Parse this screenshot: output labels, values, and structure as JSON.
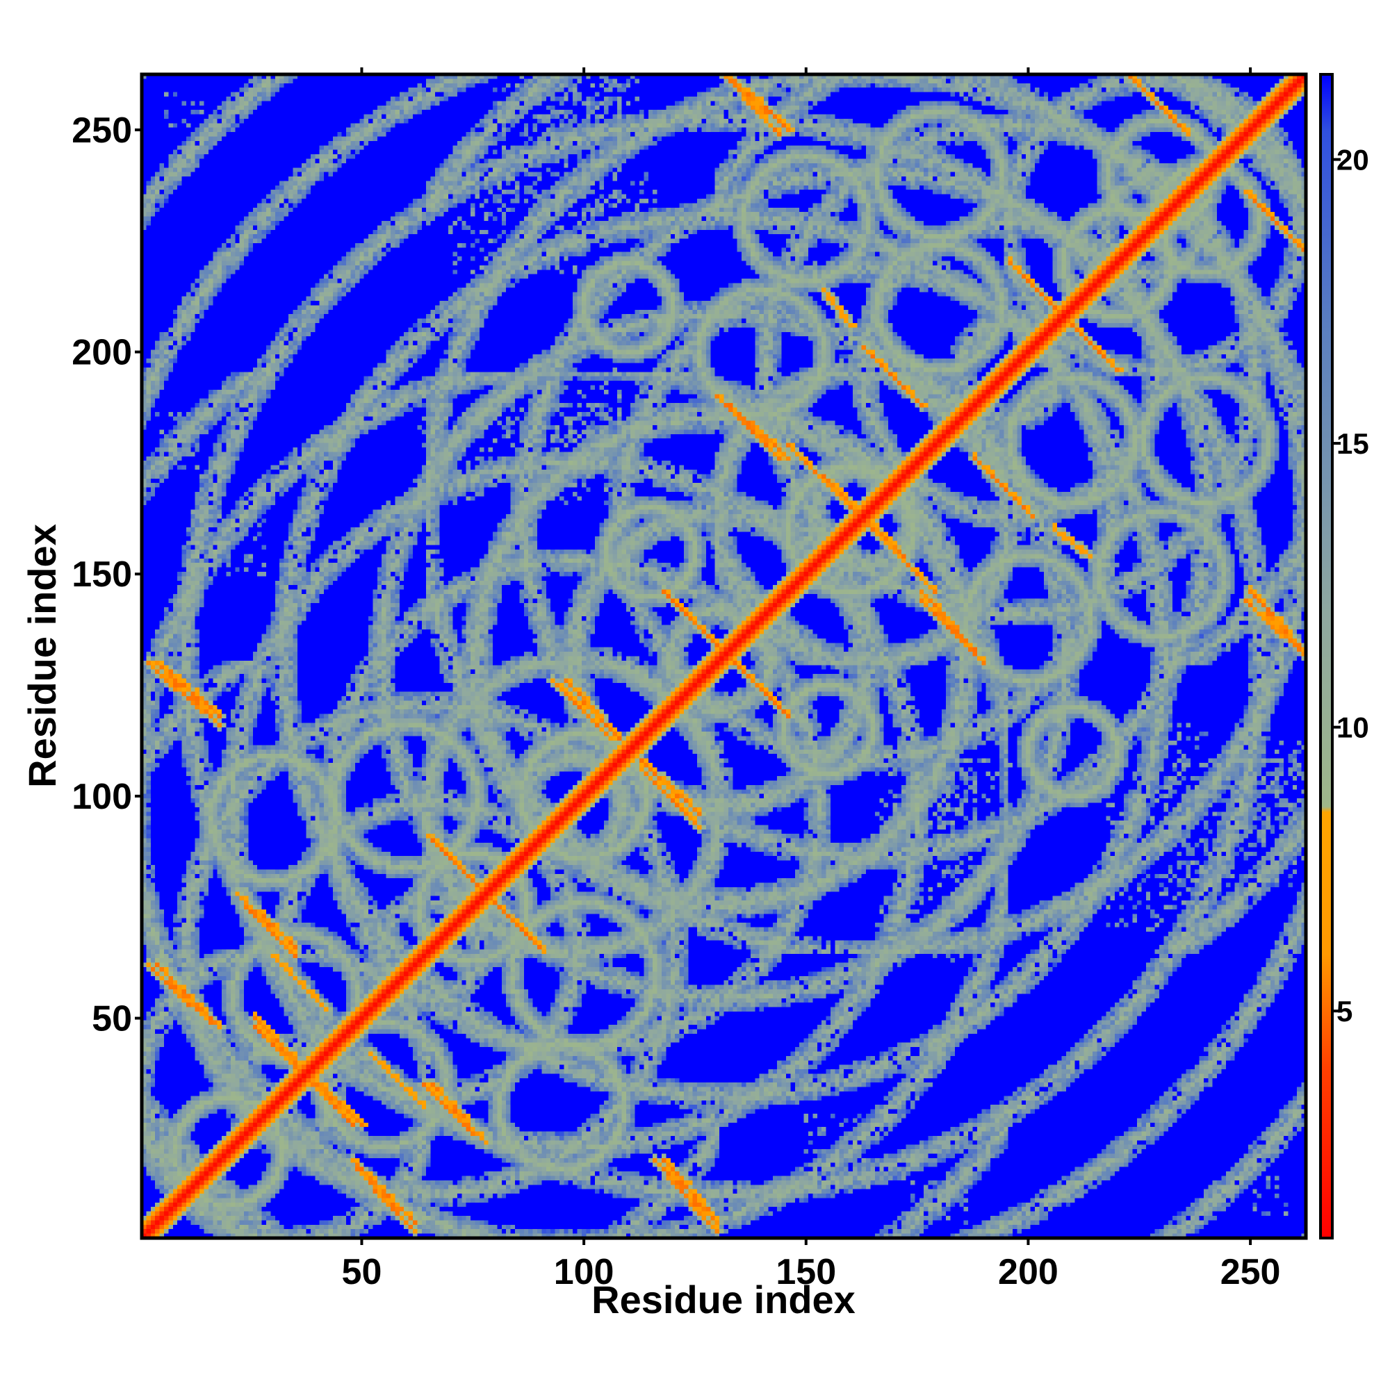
{
  "chart_data": {
    "type": "heatmap",
    "title": "",
    "xlabel": "Residue index",
    "ylabel": "Residue index",
    "xlim": [
      1,
      262
    ],
    "ylim": [
      1,
      262
    ],
    "n_residues": 262,
    "x_ticks": [
      50,
      100,
      150,
      200,
      250
    ],
    "x_tick_labels": [
      "50",
      "100",
      "150",
      "200",
      "250"
    ],
    "y_ticks": [
      50,
      100,
      150,
      200,
      250
    ],
    "y_tick_labels": [
      "50",
      "100",
      "150",
      "200",
      "250"
    ],
    "colorbar": {
      "range": [
        1,
        21.5
      ],
      "ticks": [
        5,
        10,
        15,
        20
      ],
      "tick_labels": [
        "5",
        "10",
        "15",
        "20"
      ],
      "colors": [
        {
          "value": 1,
          "color": "#ff0000"
        },
        {
          "value": 4,
          "color": "#ff4000"
        },
        {
          "value": 6,
          "color": "#ff9900"
        },
        {
          "value": 8.5,
          "color": "#ffa500"
        },
        {
          "value": 8.6,
          "color": "#9fb78a"
        },
        {
          "value": 12,
          "color": "#8fa8a0"
        },
        {
          "value": 17,
          "color": "#5b7fc0"
        },
        {
          "value": 20.5,
          "color": "#3050e0"
        },
        {
          "value": 21.5,
          "color": "#0000ff"
        }
      ]
    },
    "background_color": "#0000ff",
    "diagonal": {
      "from": 1,
      "to": 262,
      "value": 1.5
    },
    "helix_bands": [
      [
        1,
        65
      ],
      [
        65,
        130
      ],
      [
        130,
        195
      ],
      [
        195,
        262
      ],
      [
        1,
        130
      ],
      [
        130,
        262
      ],
      [
        65,
        195
      ],
      [
        1,
        195
      ],
      [
        65,
        262
      ],
      [
        1,
        262
      ]
    ],
    "contact_segments": [
      {
        "from": [
          2,
          62
        ],
        "to": [
          16,
          49
        ],
        "value": 5
      },
      {
        "from": [
          2,
          130
        ],
        "to": [
          18,
          116
        ],
        "value": 5
      },
      {
        "from": [
          24,
          75
        ],
        "to": [
          35,
          64
        ],
        "value": 5
      },
      {
        "from": [
          48,
          18
        ],
        "to": [
          62,
          4
        ],
        "value": 5
      },
      {
        "from": [
          26,
          50
        ],
        "to": [
          48,
          26
        ],
        "value": 5
      },
      {
        "from": [
          52,
          42
        ],
        "to": [
          64,
          30
        ],
        "value": 6
      },
      {
        "from": [
          65,
          91
        ],
        "to": [
          90,
          66
        ],
        "value": 5
      },
      {
        "from": [
          66,
          35
        ],
        "to": [
          78,
          22
        ],
        "value": 5
      },
      {
        "from": [
          93,
          126
        ],
        "to": [
          106,
          113
        ],
        "value": 5
      },
      {
        "from": [
          113,
          108
        ],
        "to": [
          126,
          96
        ],
        "value": 5
      },
      {
        "from": [
          118,
          18
        ],
        "to": [
          130,
          4
        ],
        "value": 5
      },
      {
        "from": [
          118,
          146
        ],
        "to": [
          146,
          118
        ],
        "value": 5
      },
      {
        "from": [
          133,
          262
        ],
        "to": [
          146,
          250
        ],
        "value": 5
      },
      {
        "from": [
          133,
          188
        ],
        "to": [
          146,
          176
        ],
        "value": 5
      },
      {
        "from": [
          154,
          214
        ],
        "to": [
          160,
          206
        ],
        "value": 6
      },
      {
        "from": [
          154,
          172
        ],
        "to": [
          179,
          146
        ],
        "value": 5
      },
      {
        "from": [
          176,
          144
        ],
        "to": [
          190,
          130
        ],
        "value": 5
      },
      {
        "from": [
          188,
          176
        ],
        "to": [
          201,
          163
        ],
        "value": 5
      },
      {
        "from": [
          196,
          220
        ],
        "to": [
          220,
          196
        ],
        "value": 5
      },
      {
        "from": [
          223,
          262
        ],
        "to": [
          236,
          249
        ],
        "value": 5
      },
      {
        "from": [
          249,
          144
        ],
        "to": [
          262,
          132
        ],
        "value": 5
      },
      {
        "from": [
          250,
          235
        ],
        "to": [
          261,
          224
        ],
        "value": 5
      }
    ],
    "sparse_contact_regions": [
      {
        "x": [
          86,
          108
        ],
        "y": [
          240,
          262
        ]
      },
      {
        "x": [
          70,
          102
        ],
        "y": [
          218,
          240
        ]
      },
      {
        "x": [
          86,
          104
        ],
        "y": [
          170,
          188
        ]
      },
      {
        "x": [
          166,
          188
        ],
        "y": [
          62,
          108
        ]
      },
      {
        "x": [
          230,
          262
        ],
        "y": [
          78,
          110
        ]
      },
      {
        "x": [
          176,
          196
        ],
        "y": [
          90,
          108
        ]
      },
      {
        "x": [
          226,
          240
        ],
        "y": [
          100,
          116
        ]
      },
      {
        "x": [
          248,
          262
        ],
        "y": [
          90,
          112
        ]
      },
      {
        "x": [
          176,
          186
        ],
        "y": [
          4,
          14
        ]
      },
      {
        "x": [
          250,
          258
        ],
        "y": [
          6,
          14
        ]
      },
      {
        "x": [
          8,
          14
        ],
        "y": [
          172,
          186
        ]
      },
      {
        "x": [
          150,
          164
        ],
        "y": [
          12,
          28
        ]
      }
    ]
  }
}
